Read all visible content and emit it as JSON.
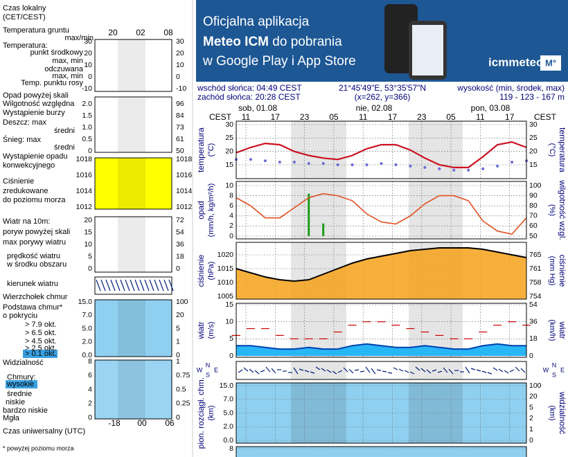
{
  "banner": {
    "line1": "Oficjalna aplikacja",
    "line2_bold": "Meteo ICM",
    "line2_rest": "do pobrania",
    "line3": "w Google Play i App Store",
    "logo": "icmmeteo",
    "logo_box": "M°"
  },
  "info": [
    "wschód słońca: 04:49 CEST",
    "zachód słońca: 20:28 CEST",
    "21°45'49\"E, 53°35'57\"N",
    "(x=262, y=366)",
    "wysokość (min, środek, max)",
    "119 - 123 - 167 m"
  ],
  "dates": [
    "sob, 01.08",
    "nie, 02.08",
    "pon, 03.08"
  ],
  "zone_label": "CEST",
  "hours": [
    "11",
    "17",
    "23",
    "05",
    "11",
    "17",
    "23",
    "05",
    "11",
    "17"
  ],
  "compass": [
    "N",
    "E",
    "S",
    "W"
  ],
  "panels": [
    {
      "left_label": "temperatura",
      "left_unit": "(°C)",
      "right_unit": "(°C)",
      "right_label": "temperatura",
      "left_ticks": [
        30,
        25,
        20,
        15
      ],
      "right_ticks": [
        30,
        25,
        20,
        15
      ]
    },
    {
      "left_label": "opad",
      "left_unit": "(mm/h, kg/m²/h)",
      "right_unit": "(%)",
      "right_label": "wilgotność wzgl.",
      "left_ticks": [
        10,
        8,
        6,
        4,
        2,
        0
      ],
      "right_ticks": [
        100,
        90,
        80,
        70,
        60,
        50
      ]
    },
    {
      "left_label": "ciśnienie",
      "left_unit": "(hPa)",
      "right_unit": "(mm Hg)",
      "right_label": "ciśnienie",
      "left_ticks": [
        1020,
        1015,
        1010,
        1005
      ],
      "right_ticks": [
        765,
        761,
        758,
        754
      ]
    },
    {
      "left_label": "wiatr",
      "left_unit": "(m/s)",
      "right_unit": "(km/h)",
      "right_label": "wiatr",
      "left_ticks": [
        15,
        10,
        5,
        0
      ],
      "right_ticks": [
        54,
        36,
        18,
        0
      ]
    },
    {
      "left_label": "pion. rozciągł. chm.",
      "left_unit": "(km)",
      "right_unit": "(km)",
      "right_label": "widzialność",
      "left_ticks": [
        {
          "value": 15,
          "label": "15.0"
        },
        {
          "value": 7,
          "label": "7.0"
        },
        {
          "value": 5,
          "label": "5.0"
        },
        {
          "value": 2,
          "label": "2.0"
        },
        {
          "value": 0,
          "label": "0.0"
        }
      ],
      "right_ticks": [
        100,
        20,
        5,
        2,
        1,
        0
      ]
    },
    {
      "left_ticks": [
        8
      ]
    }
  ],
  "series": {
    "temperature": [
      19.5,
      21.5,
      23,
      22.5,
      20,
      18.5,
      17.5,
      17,
      18.5,
      21,
      22.5,
      22.5,
      20.5,
      17.5,
      15,
      14,
      14,
      18,
      22.5,
      23.5,
      21.5
    ],
    "dew_point": [
      17,
      17,
      16.5,
      16,
      16,
      15.5,
      15.5,
      15,
      15,
      15,
      15.5,
      15,
      14.5,
      14,
      13.5,
      13,
      13,
      13.5,
      14.5,
      16,
      16.5
    ],
    "precipitation": [
      0,
      0,
      0,
      0,
      0,
      8.4,
      2.5,
      0,
      0,
      0,
      0,
      0,
      0,
      0,
      0,
      0,
      0,
      0,
      0,
      0,
      0
    ],
    "humidity": [
      88,
      80,
      68,
      68,
      78,
      88,
      92,
      90,
      85,
      72,
      64,
      62,
      70,
      82,
      90,
      90,
      85,
      65,
      55,
      52,
      68
    ],
    "pressure": [
      1015,
      1013.5,
      1012,
      1011,
      1010.5,
      1011,
      1013,
      1015,
      1017,
      1018.5,
      1019.5,
      1020.5,
      1021.5,
      1022,
      1022.5,
      1022.5,
      1022.5,
      1022,
      1021,
      1020,
      1019
    ],
    "wind": [
      3,
      3,
      2.5,
      2,
      2,
      2.5,
      2,
      2,
      3,
      3.5,
      3,
      2.5,
      2.5,
      3,
      2.5,
      2,
      2,
      3,
      3.5,
      3,
      3
    ],
    "gusts": [
      6,
      8,
      8,
      6,
      5,
      5,
      5,
      7,
      9,
      10,
      10,
      9,
      8,
      7,
      6,
      5,
      5,
      7,
      9,
      10,
      9
    ]
  },
  "legend": {
    "items": [
      "Czas lokalny",
      "(CET/CEST)",
      "Temperatura gruntu",
      "max/min",
      "Temperatura:",
      "punkt środkowy",
      "max, min",
      "odczuwana",
      "max, min",
      "Temp. punktu rosy",
      "Opad powyżej skali",
      "Wilgotność względna",
      "Wystąpienie burzy",
      "Deszcz: max",
      "średni",
      "Śnieg: max",
      "średni",
      "Wystąpienie opadu",
      "konwekcyjnego",
      "Ciśnienie",
      "zredukowane",
      "do poziomu morza",
      "Wiatr na 10m:",
      "poryw powyżej skali",
      "max porywy wiatru",
      "prędkość wiatru",
      "w środku obszaru",
      "kierunek wiatru",
      "Wierzchołek chmur",
      "Podstawa chmur*",
      "o pokryciu",
      "> 7.9 okt.",
      "> 6.5 okt.",
      "> 4.5 okt.",
      "> 2.5 okt.",
      "> 0.1 okt.",
      "Widzialność",
      "Chmury:",
      "wysokie",
      "średnie",
      "niskie",
      "bardzo niskie",
      "Mgła",
      "Czas uniwersalny (UTC)",
      "* powyżej poziomu morza"
    ],
    "top_hours": [
      "20",
      "02",
      "08"
    ],
    "bottom_hours": [
      "-18",
      "00",
      "06"
    ],
    "mini_ticks": [
      {
        "left": [
          30,
          20,
          10,
          0,
          -10
        ],
        "right": [
          30,
          20,
          10,
          0,
          -10
        ]
      },
      {
        "left": [
          "2.0",
          "1.5",
          "1.0",
          "0.5",
          "0"
        ],
        "right": [
          96,
          84,
          73,
          61,
          50
        ]
      },
      {
        "left": [
          1018,
          1016,
          1014,
          1012
        ],
        "right": [
          1018,
          1016,
          1014,
          1012
        ]
      },
      {
        "left": [
          20,
          15,
          10,
          5,
          0
        ],
        "right": [
          72,
          54,
          36,
          18,
          0
        ]
      },
      {
        "left": [
          "15.0",
          "7.0",
          "5.0",
          "2.0",
          "0.0"
        ],
        "right": [
          100,
          20,
          5,
          1,
          0
        ]
      },
      {
        "left": [
          8,
          6,
          4,
          2,
          0
        ],
        "right": [
          1,
          0.75,
          0.5,
          0.25,
          0
        ]
      }
    ]
  }
}
